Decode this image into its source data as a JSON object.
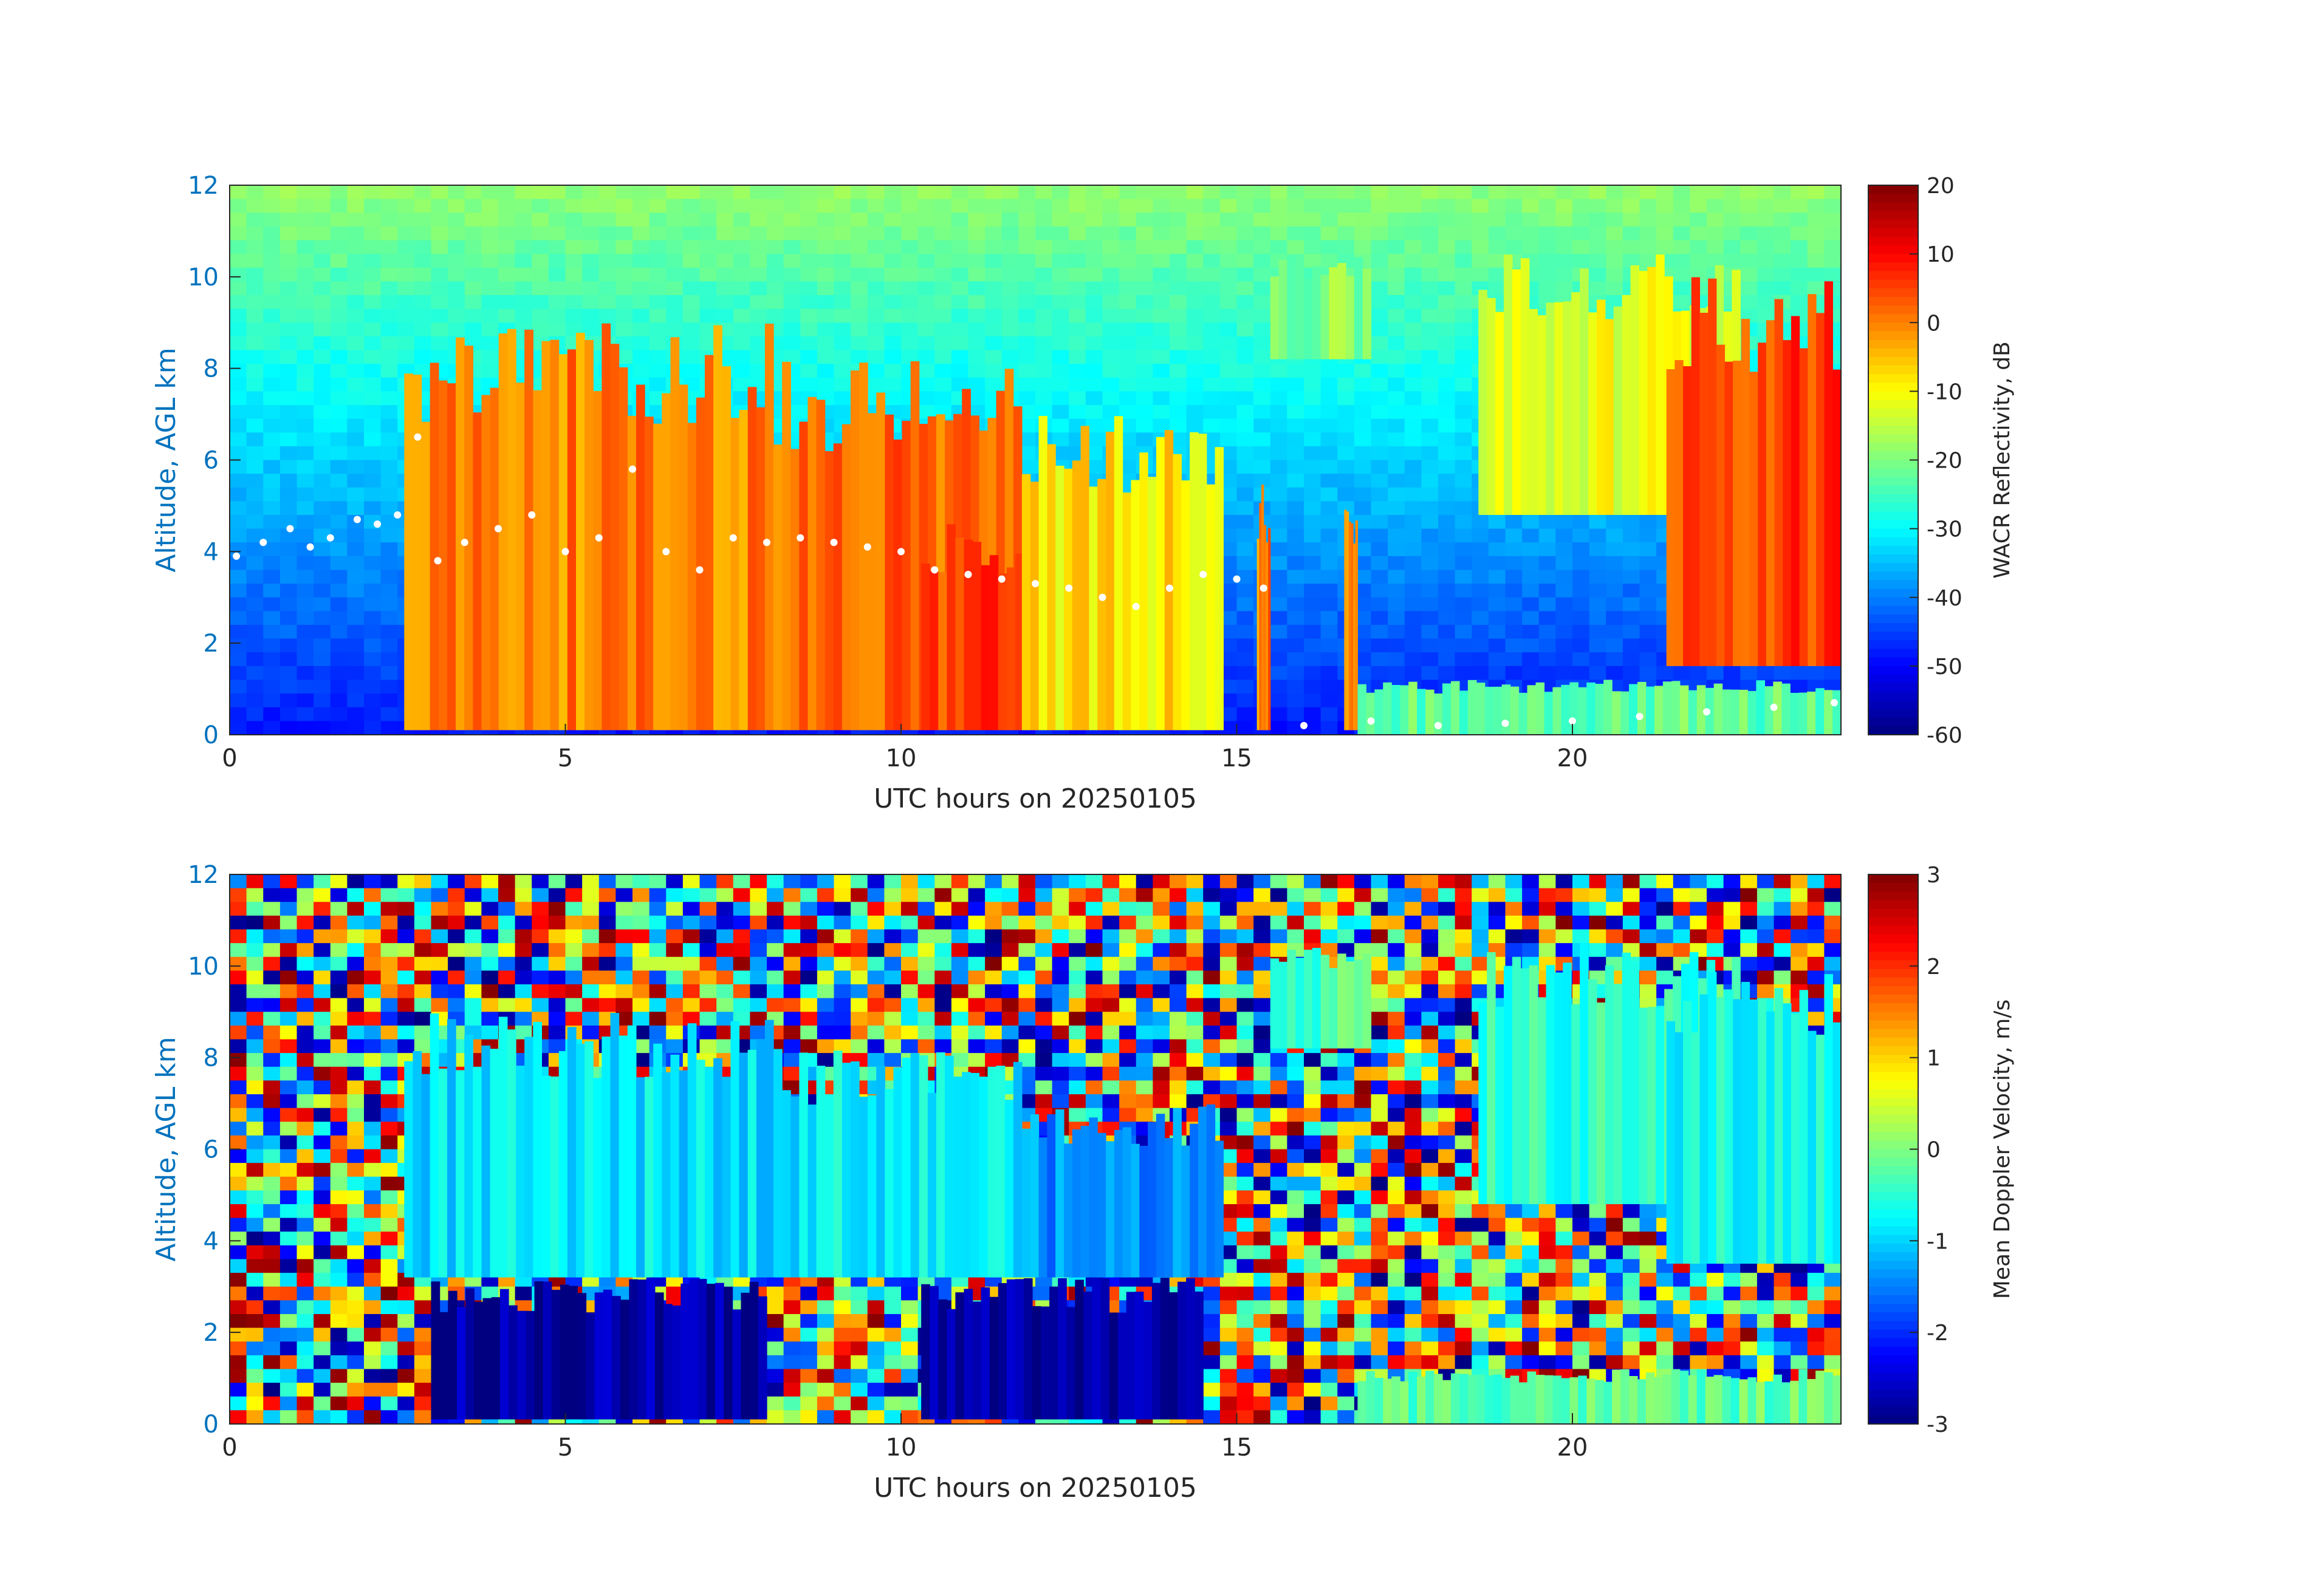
{
  "chart_data": [
    {
      "type": "heatmap",
      "panel": "top",
      "xlabel": "UTC hours on 20250105",
      "ylabel": "Altitude, AGL km",
      "xlim": [
        0,
        24
      ],
      "ylim": [
        0,
        12
      ],
      "xticks": [
        0,
        5,
        10,
        15,
        20
      ],
      "yticks": [
        0,
        2,
        4,
        6,
        8,
        10,
        12
      ],
      "colorbar": {
        "label": "WACR Reflectivity, dB",
        "range": [
          -60,
          20
        ],
        "ticks": [
          20,
          10,
          0,
          -10,
          -20,
          -30,
          -40,
          -50,
          -60
        ],
        "colormap": "jet"
      },
      "background_value": -32,
      "cloud_regions": [
        {
          "x": [
            2.6,
            8.1
          ],
          "y": [
            0.1,
            9.0
          ],
          "value": 0
        },
        {
          "x": [
            8.1,
            11.8
          ],
          "y": [
            0.1,
            8.2
          ],
          "value": 2
        },
        {
          "x": [
            10.3,
            14.5
          ],
          "y": [
            0.1,
            4.6
          ],
          "value": 5
        },
        {
          "x": [
            11.8,
            14.8
          ],
          "y": [
            0.1,
            7.0
          ],
          "value": -8
        },
        {
          "x": [
            15.3,
            15.5
          ],
          "y": [
            0.1,
            5.5
          ],
          "value": 0
        },
        {
          "x": [
            16.6,
            16.8
          ],
          "y": [
            0.1,
            5.0
          ],
          "value": 0
        },
        {
          "x": [
            15.5,
            17.0
          ],
          "y": [
            8.2,
            10.5
          ],
          "value": -20
        },
        {
          "x": [
            18.6,
            22.5
          ],
          "y": [
            4.8,
            10.5
          ],
          "value": -12
        },
        {
          "x": [
            21.4,
            24.0
          ],
          "y": [
            1.5,
            10.0
          ],
          "value": 5
        },
        {
          "x": [
            16.8,
            24.0
          ],
          "y": [
            0.0,
            1.2
          ],
          "value": -22
        }
      ],
      "cloud_base_points": [
        [
          0.1,
          3.9
        ],
        [
          0.5,
          4.2
        ],
        [
          0.9,
          4.5
        ],
        [
          1.2,
          4.1
        ],
        [
          1.5,
          4.3
        ],
        [
          1.9,
          4.7
        ],
        [
          2.2,
          4.6
        ],
        [
          2.5,
          4.8
        ],
        [
          2.8,
          6.5
        ],
        [
          3.1,
          3.8
        ],
        [
          3.5,
          4.2
        ],
        [
          4.0,
          4.5
        ],
        [
          4.5,
          4.8
        ],
        [
          5.0,
          4.0
        ],
        [
          5.5,
          4.3
        ],
        [
          6.0,
          5.8
        ],
        [
          6.5,
          4.0
        ],
        [
          7.0,
          3.6
        ],
        [
          7.5,
          4.3
        ],
        [
          8.0,
          4.2
        ],
        [
          8.5,
          4.3
        ],
        [
          9.0,
          4.2
        ],
        [
          9.5,
          4.1
        ],
        [
          10.0,
          4.0
        ],
        [
          10.5,
          3.6
        ],
        [
          11.0,
          3.5
        ],
        [
          11.5,
          3.4
        ],
        [
          12.0,
          3.3
        ],
        [
          12.5,
          3.2
        ],
        [
          13.0,
          3.0
        ],
        [
          13.5,
          2.8
        ],
        [
          14.0,
          3.2
        ],
        [
          14.5,
          3.5
        ],
        [
          15.0,
          3.4
        ],
        [
          15.4,
          3.2
        ],
        [
          16.0,
          0.2
        ],
        [
          17.0,
          0.3
        ],
        [
          18.0,
          0.2
        ],
        [
          19.0,
          0.25
        ],
        [
          20.0,
          0.3
        ],
        [
          21.0,
          0.4
        ],
        [
          22.0,
          0.5
        ],
        [
          23.0,
          0.6
        ],
        [
          23.9,
          0.7
        ]
      ]
    },
    {
      "type": "heatmap",
      "panel": "bottom",
      "xlabel": "UTC hours on 20250105",
      "ylabel": "Altitude, AGL km",
      "xlim": [
        0,
        24
      ],
      "ylim": [
        0,
        12
      ],
      "xticks": [
        0,
        5,
        10,
        15,
        20
      ],
      "yticks": [
        0,
        2,
        4,
        6,
        8,
        10,
        12
      ],
      "colorbar": {
        "label": "Mean Doppler Velocity, m/s",
        "range": [
          -3,
          3
        ],
        "ticks": [
          3,
          2,
          1,
          0,
          -1,
          -2,
          -3
        ],
        "colormap": "jet"
      },
      "background": "noise",
      "cloud_regions": [
        {
          "x": [
            2.6,
            8.1
          ],
          "y": [
            3.2,
            9.0
          ],
          "value": -0.9
        },
        {
          "x": [
            8.1,
            11.8
          ],
          "y": [
            3.2,
            8.2
          ],
          "value": -0.8
        },
        {
          "x": [
            11.8,
            14.8
          ],
          "y": [
            3.2,
            7.0
          ],
          "value": -1.4
        },
        {
          "x": [
            3.0,
            8.0
          ],
          "y": [
            0.1,
            3.2
          ],
          "value": -2.8
        },
        {
          "x": [
            10.3,
            14.5
          ],
          "y": [
            0.1,
            3.2
          ],
          "value": -2.8
        },
        {
          "x": [
            15.5,
            17.0
          ],
          "y": [
            8.2,
            10.5
          ],
          "value": -0.3
        },
        {
          "x": [
            18.6,
            22.5
          ],
          "y": [
            4.8,
            10.5
          ],
          "value": -0.5
        },
        {
          "x": [
            21.4,
            24.0
          ],
          "y": [
            3.5,
            10.0
          ],
          "value": -0.7
        },
        {
          "x": [
            16.8,
            24.0
          ],
          "y": [
            0.0,
            1.2
          ],
          "value": -0.2
        }
      ]
    }
  ]
}
